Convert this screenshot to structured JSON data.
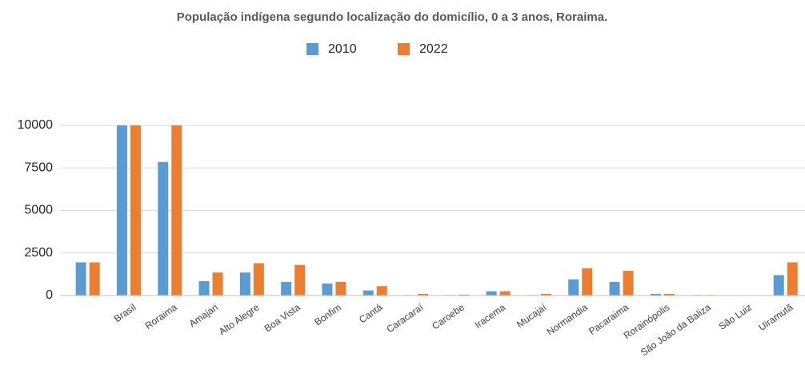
{
  "chart_data": {
    "type": "bar",
    "title": "População indígena segundo localização do domicílio, 0 a 3 anos, Roraima.",
    "categories": [
      null,
      "Brasil",
      "Roraima",
      "Amajari",
      "Alto Alegre",
      "Boa Vista",
      "Bonfim",
      "Cantá",
      "Caracaraí",
      "Caroebe",
      "Iracema",
      "Mucajaí",
      "Normandia",
      "Pacaraima",
      "Rorainópolis",
      "São João da Baliza",
      "São Luiz",
      "Uiramutã"
    ],
    "series": [
      {
        "name": "2010",
        "color": "#5b9bd5",
        "values": [
          1950,
          10000,
          7850,
          850,
          1350,
          800,
          700,
          300,
          30,
          30,
          250,
          30,
          950,
          800,
          100,
          30,
          0,
          1200
        ]
      },
      {
        "name": "2022",
        "color": "#ed7d31",
        "values": [
          1950,
          10000,
          10000,
          1350,
          1900,
          1800,
          800,
          550,
          100,
          50,
          250,
          100,
          1600,
          1450,
          100,
          30,
          0,
          1950
        ]
      }
    ],
    "ylim": [
      0,
      10000
    ],
    "yticks": [
      0,
      2500,
      5000,
      7500,
      10000
    ],
    "grid": true,
    "legend": "top"
  }
}
